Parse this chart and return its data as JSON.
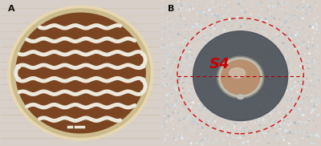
{
  "fig_width": 4.0,
  "fig_height": 1.82,
  "dpi": 100,
  "outer_border_color": "#888888",
  "panel_A_label": "A",
  "panel_B_label": "B",
  "label_fontsize": 8,
  "label_color": "#111111",
  "label_weight": "bold",
  "panel_A_wood_bg": "#c8a86a",
  "panel_A_rim_color": "#d4bC90",
  "panel_A_agar_color": "#7a4520",
  "panel_A_rim_light": "#e8d8b0",
  "streak_color": "#ece8dc",
  "streak_linewidth": 3.5,
  "panel_B_bg": "#8898a4",
  "panel_B_speckle_light": "#c8d8e0",
  "panel_B_speckle_dark": "#606878",
  "inhibition_color": "#5a6068",
  "disk_rim_color": "#c0c0b8",
  "disk_agar_color": "#b89070",
  "dashed_circle_color": "#cc1111",
  "S4_label": "S4",
  "S4_color": "#cc0000",
  "S4_fontsize": 13,
  "dashed_line_color": "#aa0000"
}
